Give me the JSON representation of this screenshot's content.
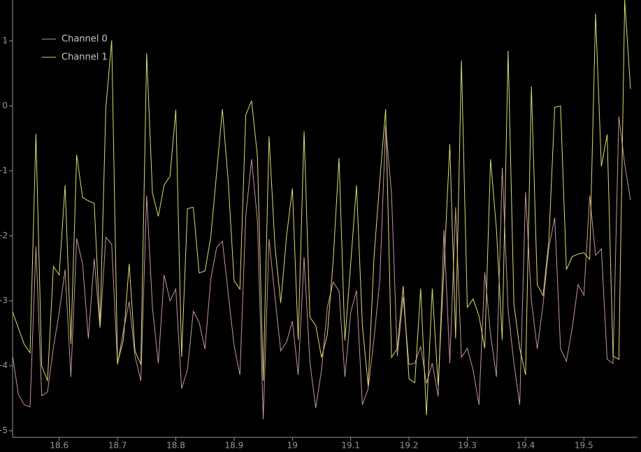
{
  "chart_data": {
    "type": "line",
    "x": [
      18.52,
      18.53,
      18.54,
      18.55,
      18.56,
      18.57,
      18.58,
      18.59,
      18.6,
      18.61,
      18.62,
      18.63,
      18.64,
      18.65,
      18.66,
      18.67,
      18.68,
      18.69,
      18.7,
      18.71,
      18.72,
      18.73,
      18.74,
      18.75,
      18.76,
      18.77,
      18.78,
      18.79,
      18.8,
      18.81,
      18.82,
      18.83,
      18.84,
      18.85,
      18.86,
      18.87,
      18.88,
      18.89,
      18.9,
      18.91,
      18.92,
      18.93,
      18.94,
      18.95,
      18.96,
      18.97,
      18.98,
      18.99,
      19.0,
      19.01,
      19.02,
      19.03,
      19.04,
      19.05,
      19.06,
      19.07,
      19.08,
      19.09,
      19.1,
      19.11,
      19.12,
      19.13,
      19.14,
      19.15,
      19.16,
      19.17,
      19.18,
      19.19,
      19.2,
      19.21,
      19.22,
      19.23,
      19.24,
      19.25,
      19.26,
      19.27,
      19.28,
      19.29,
      19.3,
      19.31,
      19.32,
      19.33,
      19.34,
      19.35,
      19.36,
      19.37,
      19.38,
      19.39,
      19.4,
      19.41,
      19.42,
      19.43,
      19.44,
      19.45,
      19.46,
      19.47,
      19.48,
      19.49,
      19.5,
      19.51,
      19.52,
      19.53,
      19.54,
      19.55,
      19.56,
      19.57,
      19.58
    ],
    "series": [
      {
        "name": "Channel 0",
        "color": "#c8969b",
        "values": [
          -3.85,
          -4.44,
          -4.6,
          -4.63,
          -2.16,
          -4.46,
          -4.4,
          -3.72,
          -3.18,
          -2.52,
          -4.17,
          -2.04,
          -2.43,
          -3.58,
          -2.35,
          -3.42,
          -2.02,
          -2.13,
          -3.98,
          -3.46,
          -3.01,
          -3.85,
          -4.23,
          -1.38,
          -3.1,
          -3.96,
          -2.6,
          -3.0,
          -2.82,
          -4.35,
          -4.06,
          -3.16,
          -3.33,
          -3.74,
          -2.67,
          -2.18,
          -2.08,
          -2.9,
          -3.69,
          -4.14,
          -1.7,
          -0.82,
          -1.77,
          -4.82,
          -2.05,
          -2.94,
          -3.77,
          -3.63,
          -3.31,
          -4.14,
          -2.33,
          -3.94,
          -4.65,
          -4.06,
          -3.1,
          -2.71,
          -2.85,
          -4.17,
          -3.18,
          -2.84,
          -4.6,
          -4.35,
          -3.58,
          -2.67,
          -0.3,
          -1.35,
          -3.85,
          -2.94,
          -3.98,
          -3.96,
          -3.7,
          -4.27,
          -3.96,
          -4.47,
          -1.91,
          -3.96,
          -1.56,
          -3.87,
          -3.73,
          -4.06,
          -4.6,
          -2.56,
          -3.52,
          -4.17,
          -0.95,
          -3.15,
          -3.96,
          -4.6,
          -1.33,
          -3.0,
          -3.74,
          -3.05,
          -2.18,
          -1.72,
          -3.74,
          -3.93,
          -3.42,
          -2.75,
          -2.91,
          -1.38,
          -2.3,
          -2.2,
          -3.9,
          -3.96,
          -0.16,
          -0.9,
          -1.45
        ]
      },
      {
        "name": "Channel 1",
        "color": "#dcdc6e",
        "values": [
          -3.17,
          -3.42,
          -3.67,
          -3.8,
          -0.43,
          -4.0,
          -4.23,
          -2.47,
          -2.6,
          -1.22,
          -3.66,
          -0.75,
          -1.41,
          -1.46,
          -1.5,
          -3.39,
          -0.03,
          1.01,
          -3.96,
          -3.6,
          -2.43,
          -3.77,
          -3.98,
          0.81,
          -1.34,
          -1.7,
          -1.22,
          -1.08,
          -0.06,
          -3.86,
          -1.58,
          -1.56,
          -2.57,
          -2.54,
          -2.02,
          -1.03,
          -0.05,
          -1.18,
          -2.69,
          -2.82,
          -0.14,
          0.08,
          -0.78,
          -4.23,
          -0.47,
          -2.15,
          -3.03,
          -2.0,
          -1.27,
          -3.6,
          -0.39,
          -3.25,
          -3.38,
          -3.87,
          -3.52,
          -2.37,
          -0.8,
          -3.61,
          -2.43,
          -1.22,
          -3.38,
          -4.31,
          -2.32,
          -1.14,
          -0.05,
          -3.87,
          -3.73,
          -2.77,
          -4.2,
          -4.26,
          -2.81,
          -4.76,
          -2.81,
          -4.3,
          -2.49,
          -0.59,
          -3.58,
          0.7,
          -3.1,
          -2.97,
          -3.23,
          -3.73,
          -0.82,
          -1.9,
          -3.6,
          0.85,
          -3.05,
          -3.73,
          -4.14,
          0.3,
          -2.75,
          -2.92,
          -2.07,
          -0.02,
          0.0,
          -2.52,
          -2.32,
          -2.28,
          -2.26,
          -2.36,
          1.42,
          -0.93,
          -0.44,
          -3.85,
          -3.9,
          1.63,
          0.26
        ]
      }
    ],
    "xlim": [
      18.52,
      19.592
    ],
    "ylim": [
      -5.1,
      1.63
    ],
    "xticks": [
      18.6,
      18.7,
      18.8,
      18.9,
      19,
      19.1,
      19.2,
      19.3,
      19.4,
      19.5
    ],
    "yticks": [
      -5,
      -4,
      -3,
      -2,
      -1,
      0,
      1
    ]
  }
}
